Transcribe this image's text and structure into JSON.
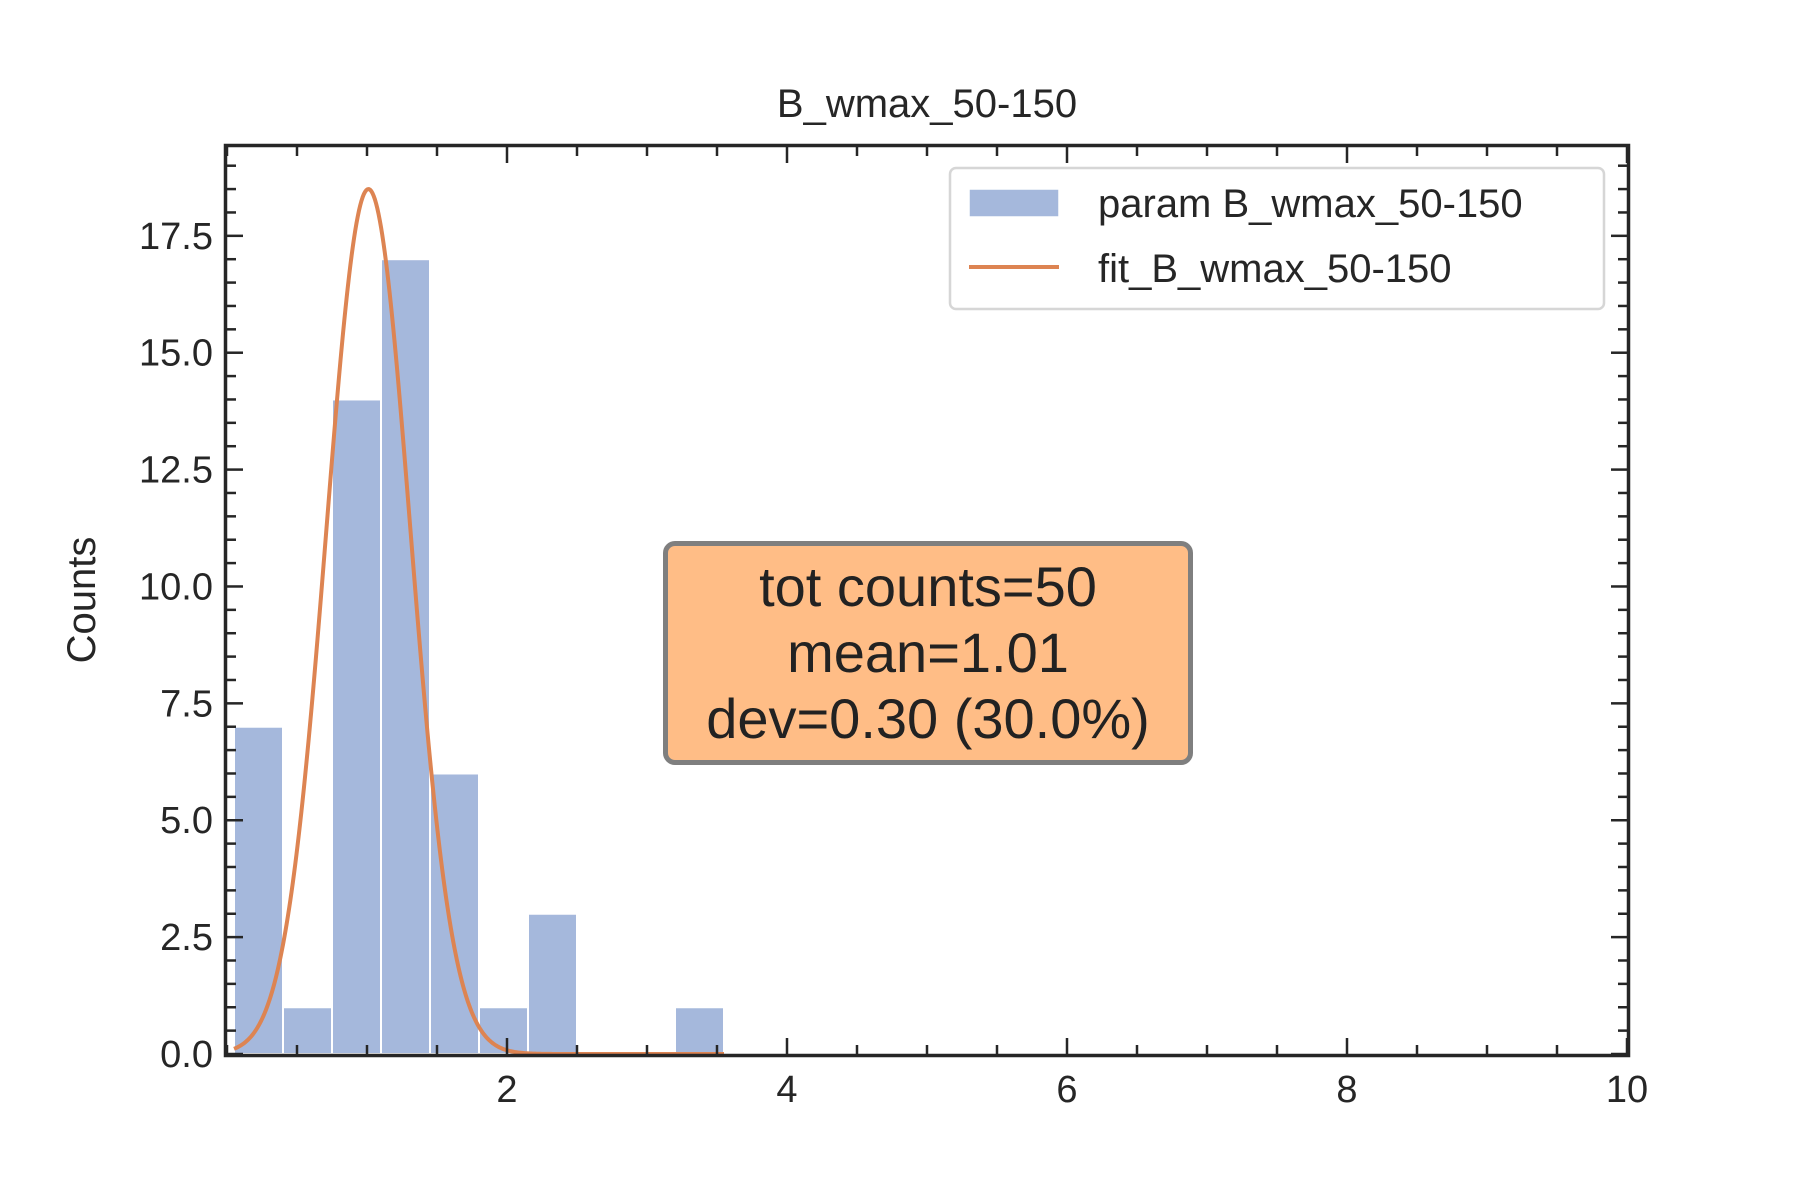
{
  "chart_data": {
    "type": "bar",
    "title": "B_wmax_50-150",
    "xlabel": "",
    "ylabel": "Counts",
    "xlim": [
      0.0,
      10.0
    ],
    "ylim": [
      0.0,
      19.4
    ],
    "xticks": [
      2,
      4,
      6,
      8,
      10
    ],
    "xtick_labels": [
      "2",
      "4",
      "6",
      "8",
      "10"
    ],
    "yticks": [
      0.0,
      2.5,
      5.0,
      7.5,
      10.0,
      12.5,
      15.0,
      17.5
    ],
    "ytick_labels": [
      "0.0",
      "2.5",
      "5.0",
      "7.5",
      "10.0",
      "12.5",
      "15.0",
      "17.5"
    ],
    "histogram": {
      "name": "param B_wmax_50-150",
      "color": "#a5b8dc",
      "bin_edges": [
        0.05,
        0.4,
        0.75,
        1.1,
        1.45,
        1.8,
        2.15,
        2.5,
        2.85,
        3.2,
        3.55
      ],
      "counts": [
        7,
        1,
        14,
        17,
        6,
        1,
        3,
        0,
        0,
        1
      ]
    },
    "fit": {
      "name": "fit_B_wmax_50-150",
      "color": "#dd8452",
      "type": "gaussian",
      "amplitude": 18.5,
      "mean": 1.01,
      "sigma": 0.3,
      "x_range": [
        0.05,
        3.55
      ]
    },
    "legend": {
      "location": "top-right",
      "entries": [
        "param B_wmax_50-150",
        "fit_B_wmax_50-150"
      ]
    },
    "annotation": {
      "lines": [
        "tot counts=50",
        "mean=1.01",
        "dev=0.30 (30.0%)"
      ],
      "facecolor": "#ffbd86",
      "location": "center"
    }
  }
}
